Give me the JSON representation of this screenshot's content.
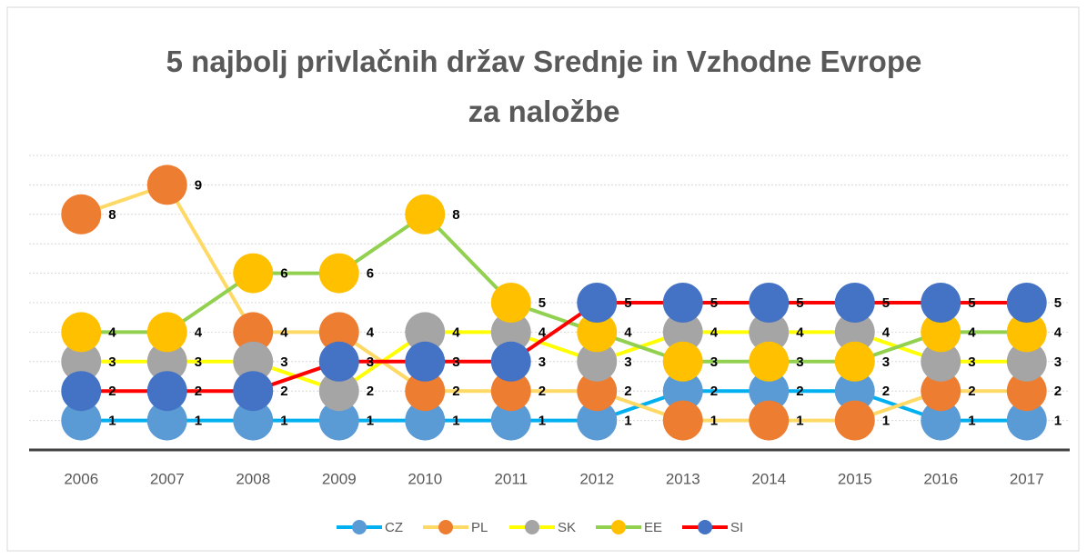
{
  "chart_data": {
    "type": "line",
    "title": "5 najbolj privlačnih držav Srednje in Vzhodne Evrope za naložbe",
    "categories": [
      "2006",
      "2007",
      "2008",
      "2009",
      "2010",
      "2011",
      "2012",
      "2013",
      "2014",
      "2015",
      "2016",
      "2017"
    ],
    "ylim": [
      0,
      10
    ],
    "yticks": [
      0,
      1,
      2,
      3,
      4,
      5,
      6,
      7,
      8,
      9,
      10
    ],
    "grid": true,
    "legend": "bottom",
    "series": [
      {
        "name": "CZ",
        "color": "#00b0f0",
        "marker_color": "#5b9bd5",
        "values": [
          1,
          1,
          1,
          1,
          1,
          1,
          1,
          2,
          2,
          2,
          1,
          1
        ]
      },
      {
        "name": "PL",
        "color": "#ffd966",
        "marker_color": "#ed7d31",
        "values": [
          8,
          9,
          4,
          4,
          2,
          2,
          2,
          1,
          1,
          1,
          2,
          2
        ]
      },
      {
        "name": "SK",
        "color": "#ffff00",
        "marker_color": "#a5a5a5",
        "values": [
          3,
          3,
          3,
          2,
          4,
          4,
          3,
          4,
          4,
          4,
          3,
          3
        ]
      },
      {
        "name": "EE",
        "color": "#92d050",
        "marker_color": "#ffc000",
        "values": [
          4,
          4,
          6,
          6,
          8,
          5,
          4,
          3,
          3,
          3,
          4,
          4
        ]
      },
      {
        "name": "SI",
        "color": "#ff0000",
        "marker_color": "#4472c4",
        "values": [
          2,
          2,
          2,
          3,
          3,
          3,
          5,
          5,
          5,
          5,
          5,
          5
        ]
      }
    ]
  }
}
